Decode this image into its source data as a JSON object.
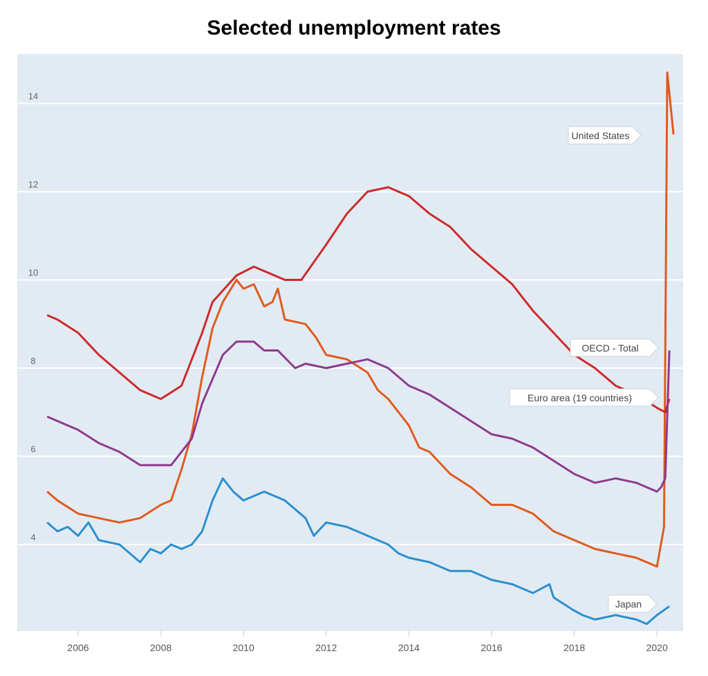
{
  "chart_data": {
    "type": "line",
    "title": "Selected unemployment rates",
    "xlabel": "",
    "ylabel": "",
    "xlim": [
      2005,
      2020.65
    ],
    "ylim": [
      2,
      15.5
    ],
    "x_ticks": [
      "2006",
      "2008",
      "2010",
      "2012",
      "2014",
      "2016",
      "2018",
      "2020"
    ],
    "y_ticks": [
      "4",
      "6",
      "8",
      "10",
      "12",
      "14"
    ],
    "grid": "horizontal",
    "colors": {
      "background": "#e2ebf3",
      "grid": "#ffffff"
    },
    "series": [
      {
        "name": "United States",
        "color": "#e05a1e",
        "points": [
          [
            2005.25,
            5.2
          ],
          [
            2005.5,
            5.0
          ],
          [
            2006,
            4.7
          ],
          [
            2006.5,
            4.6
          ],
          [
            2007,
            4.5
          ],
          [
            2007.5,
            4.6
          ],
          [
            2008,
            4.9
          ],
          [
            2008.25,
            5.0
          ],
          [
            2008.5,
            5.7
          ],
          [
            2008.75,
            6.5
          ],
          [
            2009,
            7.8
          ],
          [
            2009.25,
            8.9
          ],
          [
            2009.5,
            9.5
          ],
          [
            2009.83,
            10.0
          ],
          [
            2010,
            9.8
          ],
          [
            2010.25,
            9.9
          ],
          [
            2010.5,
            9.4
          ],
          [
            2010.7,
            9.5
          ],
          [
            2010.83,
            9.8
          ],
          [
            2011,
            9.1
          ],
          [
            2011.5,
            9.0
          ],
          [
            2011.75,
            8.7
          ],
          [
            2012,
            8.3
          ],
          [
            2012.5,
            8.2
          ],
          [
            2013,
            7.9
          ],
          [
            2013.25,
            7.5
          ],
          [
            2013.5,
            7.3
          ],
          [
            2014,
            6.7
          ],
          [
            2014.25,
            6.2
          ],
          [
            2014.5,
            6.1
          ],
          [
            2015,
            5.6
          ],
          [
            2015.5,
            5.3
          ],
          [
            2016,
            4.9
          ],
          [
            2016.5,
            4.9
          ],
          [
            2017,
            4.7
          ],
          [
            2017.5,
            4.3
          ],
          [
            2018,
            4.1
          ],
          [
            2018.5,
            3.9
          ],
          [
            2019,
            3.8
          ],
          [
            2019.5,
            3.7
          ],
          [
            2020,
            3.5
          ],
          [
            2020.17,
            4.4
          ],
          [
            2020.25,
            14.7
          ],
          [
            2020.4,
            13.3
          ]
        ]
      },
      {
        "name": "Euro area (19 countries)",
        "color": "#cc2a2a",
        "points": [
          [
            2005.25,
            9.2
          ],
          [
            2005.5,
            9.1
          ],
          [
            2006,
            8.8
          ],
          [
            2006.5,
            8.3
          ],
          [
            2007,
            7.9
          ],
          [
            2007.5,
            7.5
          ],
          [
            2008,
            7.3
          ],
          [
            2008.5,
            7.6
          ],
          [
            2009,
            8.8
          ],
          [
            2009.25,
            9.5
          ],
          [
            2009.83,
            10.1
          ],
          [
            2010.25,
            10.3
          ],
          [
            2010.5,
            10.2
          ],
          [
            2011,
            10.0
          ],
          [
            2011.4,
            10.0
          ],
          [
            2012,
            10.8
          ],
          [
            2012.5,
            11.5
          ],
          [
            2013,
            12.0
          ],
          [
            2013.5,
            12.1
          ],
          [
            2014,
            11.9
          ],
          [
            2014.5,
            11.5
          ],
          [
            2015,
            11.2
          ],
          [
            2015.5,
            10.7
          ],
          [
            2016,
            10.3
          ],
          [
            2016.5,
            9.9
          ],
          [
            2017,
            9.3
          ],
          [
            2017.5,
            8.8
          ],
          [
            2018,
            8.3
          ],
          [
            2018.5,
            8.0
          ],
          [
            2019,
            7.6
          ],
          [
            2019.5,
            7.4
          ],
          [
            2020,
            7.1
          ],
          [
            2020.2,
            7.0
          ],
          [
            2020.3,
            7.3
          ]
        ]
      },
      {
        "name": "OECD - Total",
        "color": "#8e3a8e",
        "points": [
          [
            2005.25,
            6.9
          ],
          [
            2005.75,
            6.7
          ],
          [
            2006,
            6.6
          ],
          [
            2006.5,
            6.3
          ],
          [
            2007,
            6.1
          ],
          [
            2007.5,
            5.8
          ],
          [
            2008,
            5.8
          ],
          [
            2008.25,
            5.8
          ],
          [
            2008.5,
            6.1
          ],
          [
            2008.75,
            6.4
          ],
          [
            2009,
            7.2
          ],
          [
            2009.5,
            8.3
          ],
          [
            2009.83,
            8.6
          ],
          [
            2010.25,
            8.6
          ],
          [
            2010.5,
            8.4
          ],
          [
            2010.83,
            8.4
          ],
          [
            2011.25,
            8.0
          ],
          [
            2011.5,
            8.1
          ],
          [
            2012,
            8.0
          ],
          [
            2012.5,
            8.1
          ],
          [
            2013,
            8.2
          ],
          [
            2013.5,
            8.0
          ],
          [
            2014,
            7.6
          ],
          [
            2014.5,
            7.4
          ],
          [
            2015,
            7.1
          ],
          [
            2015.5,
            6.8
          ],
          [
            2016,
            6.5
          ],
          [
            2016.5,
            6.4
          ],
          [
            2017,
            6.2
          ],
          [
            2017.5,
            5.9
          ],
          [
            2018,
            5.6
          ],
          [
            2018.5,
            5.4
          ],
          [
            2019,
            5.5
          ],
          [
            2019.5,
            5.4
          ],
          [
            2020,
            5.2
          ],
          [
            2020.1,
            5.3
          ],
          [
            2020.2,
            5.5
          ],
          [
            2020.3,
            8.4
          ]
        ]
      },
      {
        "name": "Japan",
        "color": "#2a8fd0",
        "points": [
          [
            2005.25,
            4.5
          ],
          [
            2005.5,
            4.3
          ],
          [
            2005.75,
            4.4
          ],
          [
            2006,
            4.2
          ],
          [
            2006.25,
            4.5
          ],
          [
            2006.5,
            4.1
          ],
          [
            2007,
            4.0
          ],
          [
            2007.5,
            3.6
          ],
          [
            2007.75,
            3.9
          ],
          [
            2008,
            3.8
          ],
          [
            2008.25,
            4.0
          ],
          [
            2008.5,
            3.9
          ],
          [
            2008.75,
            4.0
          ],
          [
            2009,
            4.3
          ],
          [
            2009.25,
            5.0
          ],
          [
            2009.5,
            5.5
          ],
          [
            2009.75,
            5.2
          ],
          [
            2010,
            5.0
          ],
          [
            2010.5,
            5.2
          ],
          [
            2011,
            5.0
          ],
          [
            2011.5,
            4.6
          ],
          [
            2011.7,
            4.2
          ],
          [
            2012,
            4.5
          ],
          [
            2012.5,
            4.4
          ],
          [
            2013,
            4.2
          ],
          [
            2013.5,
            4.0
          ],
          [
            2013.75,
            3.8
          ],
          [
            2014,
            3.7
          ],
          [
            2014.5,
            3.6
          ],
          [
            2015,
            3.4
          ],
          [
            2015.5,
            3.4
          ],
          [
            2016,
            3.2
          ],
          [
            2016.5,
            3.1
          ],
          [
            2017,
            2.9
          ],
          [
            2017.4,
            3.1
          ],
          [
            2017.5,
            2.8
          ],
          [
            2018,
            2.5
          ],
          [
            2018.2,
            2.4
          ],
          [
            2018.5,
            2.3
          ],
          [
            2019,
            2.4
          ],
          [
            2019.5,
            2.3
          ],
          [
            2019.75,
            2.2
          ],
          [
            2020,
            2.4
          ],
          [
            2020.3,
            2.6
          ]
        ]
      }
    ],
    "labels": [
      "United States",
      "OECD - Total",
      "Euro area (19 countries)",
      "Japan"
    ]
  }
}
